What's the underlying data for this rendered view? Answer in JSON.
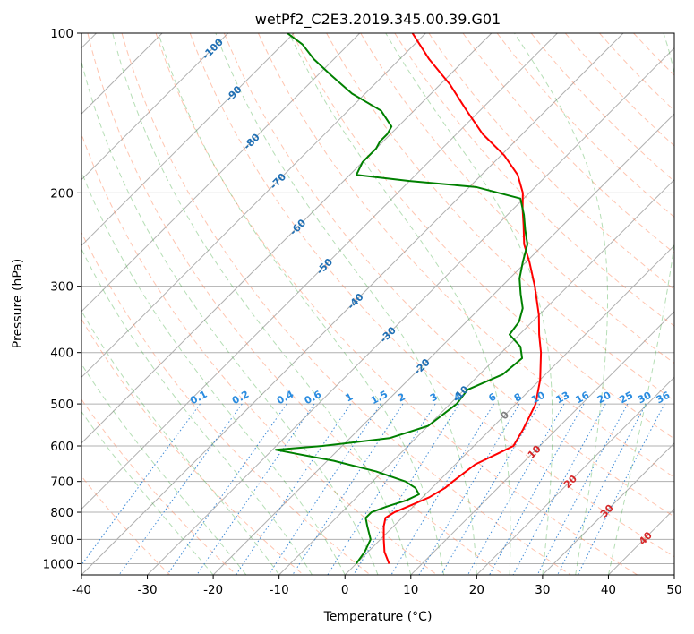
{
  "chart_data": {
    "type": "line",
    "title": "wetPf2_C2E3.2019.345.00.39.G01",
    "xlabel": "Temperature (°C)",
    "ylabel": "Pressure (hPa)",
    "xlim": [
      -40,
      50
    ],
    "ylim": [
      1050,
      100
    ],
    "y_scale": "log",
    "x_ticks": [
      -40,
      -30,
      -20,
      -10,
      0,
      10,
      20,
      30,
      40,
      50
    ],
    "y_ticks": [
      100,
      200,
      300,
      400,
      500,
      600,
      700,
      800,
      900,
      1000
    ],
    "grid": true,
    "skew_lines": [
      -120,
      -110,
      -100,
      -90,
      -80,
      -70,
      -60,
      -50,
      -40,
      -30,
      -20,
      -10,
      0,
      10,
      20,
      30,
      40,
      50
    ],
    "dry_adiabat_theta_c": [
      -30,
      -20,
      -10,
      0,
      10,
      20,
      30,
      40,
      50,
      60,
      70,
      80,
      90,
      100,
      110,
      120,
      130,
      140,
      150,
      160,
      170,
      180
    ],
    "moist_adiabat_start_c": [
      -20,
      -15,
      -10,
      -5,
      0,
      5,
      10,
      15,
      20,
      25,
      30,
      35,
      40
    ],
    "mixing_ratio_lines": [
      0.1,
      0.2,
      0.4,
      0.6,
      1,
      1.5,
      2,
      3,
      4,
      6,
      8,
      10,
      13,
      16,
      20,
      25,
      30,
      36
    ],
    "mixing_ratio_labels": [
      "0.1",
      "0.2",
      "0.4",
      "0.6",
      "1",
      "1.5",
      "2",
      "3",
      "4",
      "6",
      "8",
      "10",
      "13",
      "16",
      "20",
      "25",
      "30",
      "36"
    ],
    "skew_labels_blue": [
      "-100",
      "-90",
      "-80",
      "-70",
      "-60",
      "-50",
      "-40",
      "-30",
      "-20",
      "-10"
    ],
    "skew_labels_gray": [
      "0"
    ],
    "skew_labels_red": [
      "10",
      "20",
      "30",
      "40"
    ],
    "series": [
      {
        "name": "temperature",
        "color": "#ff0000",
        "points": [
          [
            1000,
            5.0
          ],
          [
            950,
            2.5
          ],
          [
            900,
            0.5
          ],
          [
            850,
            -1.5
          ],
          [
            820,
            -2.5
          ],
          [
            800,
            -2.0
          ],
          [
            780,
            -0.8
          ],
          [
            750,
            1.0
          ],
          [
            720,
            2.0
          ],
          [
            700,
            2.2
          ],
          [
            650,
            3.0
          ],
          [
            620,
            4.8
          ],
          [
            600,
            6.0
          ],
          [
            560,
            5.0
          ],
          [
            500,
            3.0
          ],
          [
            450,
            0.0
          ],
          [
            400,
            -4.0
          ],
          [
            370,
            -7.0
          ],
          [
            340,
            -10.0
          ],
          [
            300,
            -15.0
          ],
          [
            270,
            -19.5
          ],
          [
            250,
            -23.0
          ],
          [
            230,
            -26.0
          ],
          [
            215,
            -28.5
          ],
          [
            200,
            -31.0
          ],
          [
            185,
            -34.5
          ],
          [
            170,
            -39.5
          ],
          [
            155,
            -46.0
          ],
          [
            140,
            -52.0
          ],
          [
            125,
            -58.5
          ],
          [
            112,
            -65.5
          ],
          [
            100,
            -72.0
          ]
        ]
      },
      {
        "name": "dewpoint",
        "color": "#008000",
        "points": [
          [
            1000,
            0.0
          ],
          [
            950,
            -0.5
          ],
          [
            900,
            -1.5
          ],
          [
            850,
            -4.0
          ],
          [
            820,
            -5.5
          ],
          [
            800,
            -5.5
          ],
          [
            780,
            -4.0
          ],
          [
            760,
            -2.0
          ],
          [
            740,
            -1.0
          ],
          [
            720,
            -2.5
          ],
          [
            700,
            -5.0
          ],
          [
            670,
            -11.0
          ],
          [
            640,
            -19.0
          ],
          [
            620,
            -26.0
          ],
          [
            610,
            -29.5
          ],
          [
            600,
            -23.0
          ],
          [
            580,
            -14.0
          ],
          [
            550,
            -10.0
          ],
          [
            500,
            -9.0
          ],
          [
            470,
            -9.5
          ],
          [
            440,
            -6.5
          ],
          [
            410,
            -6.0
          ],
          [
            390,
            -8.0
          ],
          [
            370,
            -11.5
          ],
          [
            350,
            -12.0
          ],
          [
            330,
            -13.5
          ],
          [
            310,
            -16.0
          ],
          [
            290,
            -18.5
          ],
          [
            270,
            -20.5
          ],
          [
            250,
            -22.5
          ],
          [
            235,
            -25.0
          ],
          [
            220,
            -27.5
          ],
          [
            205,
            -30.5
          ],
          [
            195,
            -39.0
          ],
          [
            190,
            -50.0
          ],
          [
            185,
            -59.0
          ],
          [
            175,
            -60.0
          ],
          [
            165,
            -60.0
          ],
          [
            160,
            -60.5
          ],
          [
            155,
            -60.5
          ],
          [
            150,
            -61.0
          ],
          [
            140,
            -65.0
          ],
          [
            130,
            -72.0
          ],
          [
            120,
            -78.0
          ],
          [
            112,
            -83.0
          ],
          [
            105,
            -87.0
          ],
          [
            100,
            -91.0
          ]
        ]
      }
    ]
  }
}
